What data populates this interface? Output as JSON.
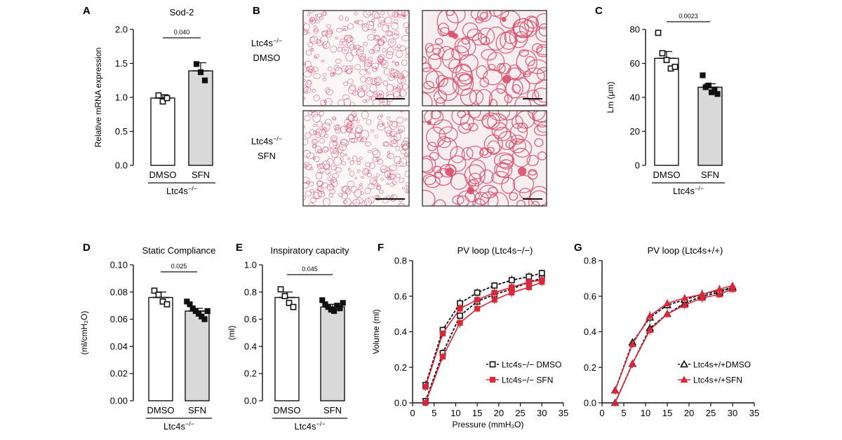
{
  "figure": {
    "panel_letters": [
      "A",
      "B",
      "C",
      "D",
      "E",
      "F",
      "G"
    ],
    "genotype_ko": "Ltc4s",
    "genotype_ko_sup": "−/−",
    "genotype_wt_sup": "+/+",
    "colors": {
      "dmso_fill": "#ffffff",
      "sfn_fill": "#d9d9d9",
      "ko_sfn_line": "#d9283a",
      "tissue": "#d84c68"
    }
  },
  "panel_b": {
    "row_labels": [
      {
        "name": "Ltc4s",
        "sup": "−/−",
        "condition": "DMSO"
      },
      {
        "name": "Ltc4s",
        "sup": "−/−",
        "condition": "SFN"
      }
    ],
    "image_kinds": [
      "low-magnification lung section",
      "high-magnification lung section"
    ]
  },
  "chart_data": [
    {
      "panel": "A",
      "type": "bar",
      "title": "Sod-2",
      "categories": [
        "DMSO",
        "SFN"
      ],
      "group_label": "Ltc4s−/−",
      "ylabel": "Relative mRNA expression",
      "ylim": [
        0,
        2.0
      ],
      "yticks": [
        "0.0",
        "0.5",
        "1.0",
        "1.5",
        "2.0"
      ],
      "values": [
        0.99,
        1.39
      ],
      "sem": [
        0.05,
        0.12
      ],
      "points": [
        [
          1.03,
          0.94,
          0.99
        ],
        [
          1.49,
          1.37,
          1.25
        ]
      ],
      "p_value": "0.040"
    },
    {
      "panel": "C",
      "type": "bar",
      "title": "",
      "categories": [
        "DMSO",
        "SFN"
      ],
      "group_label": "Ltc4s−/−",
      "ylabel": "Lm (μm)",
      "ylim": [
        0,
        80
      ],
      "yticks": [
        "0",
        "20",
        "40",
        "60",
        "80"
      ],
      "values": [
        63,
        46
      ],
      "sem": [
        4,
        2
      ],
      "points": [
        [
          78,
          66,
          62,
          57,
          58
        ],
        [
          53,
          46,
          47,
          43,
          44,
          42
        ]
      ],
      "p_value": "0.0023"
    },
    {
      "panel": "D",
      "type": "bar",
      "title": "Static Compliance",
      "categories": [
        "DMSO",
        "SFN"
      ],
      "group_label": "Ltc4s−/−",
      "ylabel": "(ml/cmH₂O)",
      "ylim": [
        0,
        0.1
      ],
      "yticks": [
        "0.00",
        "0.02",
        "0.04",
        "0.06",
        "0.08",
        "0.10"
      ],
      "values": [
        0.076,
        0.066
      ],
      "sem": [
        0.004,
        0.002
      ],
      "points": [
        [
          0.081,
          0.078,
          0.073,
          0.071
        ],
        [
          0.073,
          0.071,
          0.068,
          0.066,
          0.064,
          0.062,
          0.06,
          0.066
        ]
      ],
      "p_value": "0.025"
    },
    {
      "panel": "E",
      "type": "bar",
      "title": "Inspiratory capacity",
      "categories": [
        "DMSO",
        "SFN"
      ],
      "group_label": "Ltc4s−/−",
      "ylabel": "(ml)",
      "ylim": [
        0,
        1.0
      ],
      "yticks": [
        "0.0",
        "0.2",
        "0.4",
        "0.6",
        "0.8",
        "1.0"
      ],
      "values": [
        0.76,
        0.69
      ],
      "sem": [
        0.04,
        0.02
      ],
      "points": [
        [
          0.82,
          0.77,
          0.72,
          0.69
        ],
        [
          0.74,
          0.71,
          0.69,
          0.67,
          0.66,
          0.7,
          0.68,
          0.72
        ]
      ],
      "p_value": "0.045"
    },
    {
      "panel": "F",
      "type": "line",
      "title": "PV loop (Ltc4s−/−)",
      "xlabel": "Pressure (mmH₂O)",
      "ylabel": "Volume (ml)",
      "xlim": [
        0,
        35
      ],
      "ylim": [
        0,
        0.8
      ],
      "xticks": [
        "0",
        "5",
        "10",
        "15",
        "20",
        "25",
        "30",
        "35"
      ],
      "yticks": [
        "0.0",
        "0.2",
        "0.4",
        "0.6",
        "0.8"
      ],
      "legend_position": "bottom-right",
      "series": [
        {
          "name": "Ltc4s−/− DMSO",
          "marker": "open-square",
          "color": "#111111",
          "inflation": {
            "x": [
              3,
              7,
              11,
              15,
              19,
              23,
              27,
              30
            ],
            "y": [
              0.01,
              0.28,
              0.49,
              0.57,
              0.61,
              0.64,
              0.68,
              0.7
            ]
          },
          "deflation": {
            "x": [
              30,
              27,
              23,
              19,
              15,
              11,
              7,
              3
            ],
            "y": [
              0.73,
              0.71,
              0.69,
              0.66,
              0.62,
              0.56,
              0.41,
              0.1
            ]
          }
        },
        {
          "name": "Ltc4s−/− SFN",
          "marker": "filled-square",
          "color": "#d9283a",
          "inflation": {
            "x": [
              3,
              7,
              11,
              15,
              19,
              23,
              27,
              30
            ],
            "y": [
              0.0,
              0.26,
              0.45,
              0.53,
              0.58,
              0.62,
              0.65,
              0.68
            ]
          },
          "deflation": {
            "x": [
              30,
              27,
              23,
              19,
              15,
              11,
              7,
              3
            ],
            "y": [
              0.69,
              0.68,
              0.65,
              0.62,
              0.58,
              0.53,
              0.39,
              0.09
            ]
          }
        }
      ]
    },
    {
      "panel": "G",
      "type": "line",
      "title": "PV loop (Ltc4s+/+)",
      "xlabel": "",
      "ylabel": "",
      "xlim": [
        0,
        35
      ],
      "ylim": [
        0,
        0.8
      ],
      "xticks": [
        "0",
        "5",
        "10",
        "15",
        "20",
        "25",
        "30",
        "35"
      ],
      "yticks": [
        "0.0",
        "0.2",
        "0.4",
        "0.6",
        "0.8"
      ],
      "legend_position": "bottom-right",
      "series": [
        {
          "name": "Ltc4s+/+DMSO",
          "marker": "open-triangle",
          "color": "#111111",
          "inflation": {
            "x": [
              3,
              7,
              11,
              15,
              19,
              23,
              27,
              30
            ],
            "y": [
              0.0,
              0.22,
              0.42,
              0.5,
              0.56,
              0.6,
              0.62,
              0.65
            ]
          },
          "deflation": {
            "x": [
              30,
              27,
              23,
              19,
              15,
              11,
              7,
              3
            ],
            "y": [
              0.65,
              0.63,
              0.61,
              0.58,
              0.55,
              0.48,
              0.34,
              0.07
            ]
          }
        },
        {
          "name": "Ltc4s+/+SFN",
          "marker": "filled-triangle",
          "color": "#d9283a",
          "inflation": {
            "x": [
              3,
              7,
              11,
              15,
              19,
              23,
              27,
              30
            ],
            "y": [
              0.0,
              0.22,
              0.41,
              0.5,
              0.55,
              0.59,
              0.61,
              0.64
            ]
          },
          "deflation": {
            "x": [
              30,
              27,
              23,
              19,
              15,
              11,
              7,
              3
            ],
            "y": [
              0.66,
              0.64,
              0.61,
              0.59,
              0.56,
              0.49,
              0.33,
              0.07
            ]
          }
        }
      ]
    }
  ]
}
